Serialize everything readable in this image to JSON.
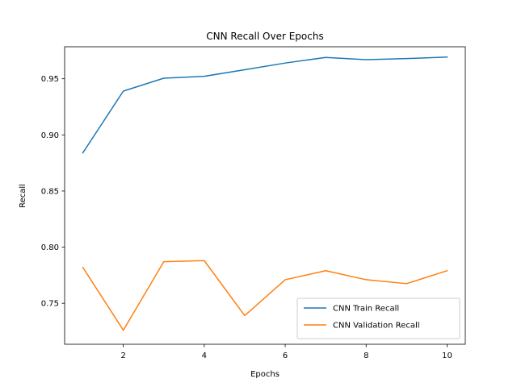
{
  "chart_data": {
    "type": "line",
    "title": "CNN Recall Over Epochs",
    "xlabel": "Epochs",
    "ylabel": "Recall",
    "x": [
      1,
      2,
      3,
      4,
      5,
      6,
      7,
      8,
      9,
      10
    ],
    "xlim": [
      0.55,
      10.45
    ],
    "ylim": [
      0.7135,
      0.9785
    ],
    "xticks": [
      2,
      4,
      6,
      8,
      10
    ],
    "xtick_labels": [
      "2",
      "4",
      "6",
      "8",
      "10"
    ],
    "yticks": [
      0.75,
      0.8,
      0.85,
      0.9,
      0.95
    ],
    "ytick_labels": [
      "0.75",
      "0.80",
      "0.85",
      "0.90",
      "0.95"
    ],
    "grid": false,
    "legend_position": "lower-right",
    "series": [
      {
        "name": "CNN Train Recall",
        "color": "#1f77b4",
        "values": [
          0.884,
          0.939,
          0.9505,
          0.9522,
          0.958,
          0.964,
          0.969,
          0.967,
          0.968,
          0.9693
        ]
      },
      {
        "name": "CNN Validation Recall",
        "color": "#ff7f0e",
        "values": [
          0.782,
          0.726,
          0.787,
          0.788,
          0.739,
          0.771,
          0.779,
          0.771,
          0.7675,
          0.779
        ]
      }
    ]
  }
}
